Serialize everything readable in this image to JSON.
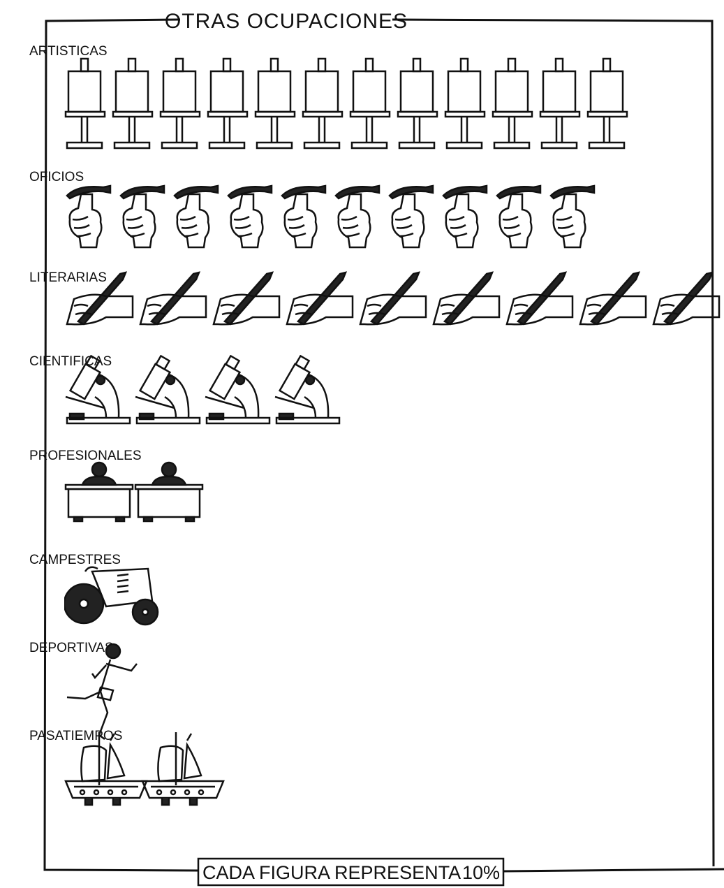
{
  "chart_data": {
    "type": "pictogram",
    "title": "OTRAS OCUPACIONES",
    "categories": [
      "ARTISTICAS",
      "OFICIOS",
      "LITERARIAS",
      "CIENTIFICAS",
      "PROFESIONALES",
      "CAMPESTRES",
      "DEPORTIVAS",
      "PASATIEMPOS"
    ],
    "values": [
      120,
      100,
      90,
      40,
      20,
      10,
      10,
      20
    ],
    "note": "CADA FIGURA REPRESENTA",
    "figure_value": {
      "value": 10,
      "label": "10%"
    }
  }
}
